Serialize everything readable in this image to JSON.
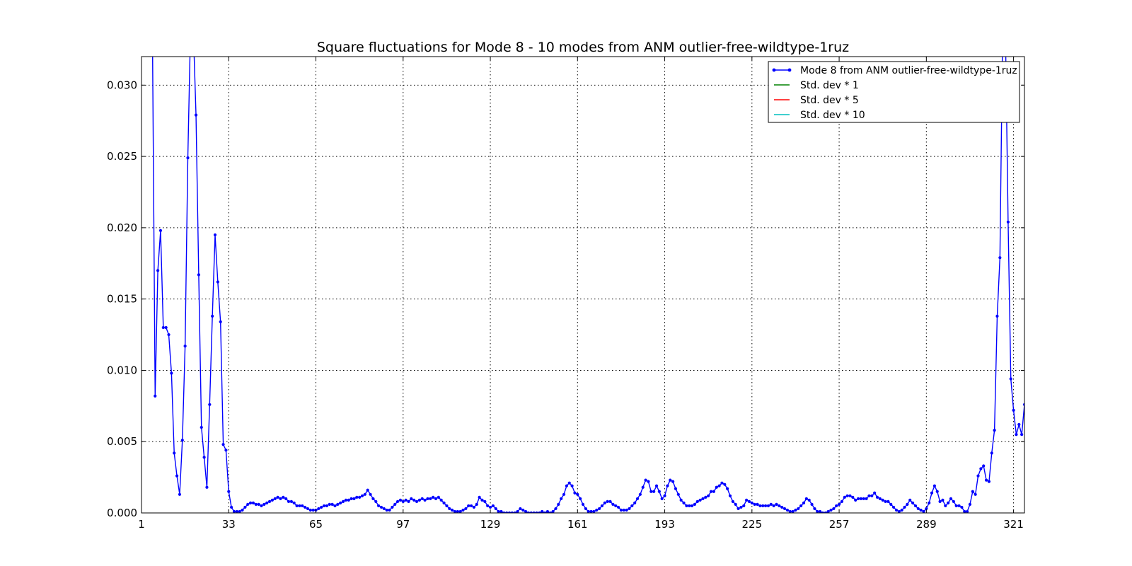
{
  "chart_data": {
    "type": "line",
    "title": "Square fluctuations for Mode 8 - 10 modes from ANM outlier-free-wildtype-1ruz",
    "xlabel": "",
    "ylabel": "",
    "xlim": [
      1,
      325
    ],
    "ylim": [
      0,
      0.032
    ],
    "x_ticks": [
      1,
      33,
      65,
      97,
      129,
      161,
      193,
      225,
      257,
      289,
      321
    ],
    "y_ticks": [
      0,
      0.005,
      0.01,
      0.015,
      0.02,
      0.025,
      0.03
    ],
    "y_tick_labels": [
      "0.000",
      "0.005",
      "0.010",
      "0.015",
      "0.020",
      "0.025",
      "0.030"
    ],
    "grid": true,
    "legend_position": "top-right",
    "colors": {
      "mode": "#0000ff",
      "std1": "#008000",
      "std5": "#ff0000",
      "std10": "#00bfbf"
    },
    "series": [
      {
        "name": "Mode 8 from ANM outlier-free-wildtype-1ruz",
        "x_start": 5,
        "values": [
          0.034,
          0.0082,
          0.017,
          0.0198,
          0.013,
          0.013,
          0.0125,
          0.0098,
          0.0042,
          0.0026,
          0.0013,
          0.0051,
          0.0117,
          0.0249,
          0.034,
          0.034,
          0.0279,
          0.0167,
          0.006,
          0.0039,
          0.0018,
          0.0076,
          0.0138,
          0.0195,
          0.0162,
          0.0134,
          0.0048,
          0.0044,
          0.0015,
          0.0004,
          0.0001,
          0.0001,
          0.0001,
          0.0002,
          0.0004,
          0.0006,
          0.0007,
          0.0007,
          0.0006,
          0.0006,
          0.0005,
          0.0006,
          0.0007,
          0.0008,
          0.0009,
          0.001,
          0.0011,
          0.001,
          0.0011,
          0.001,
          0.0008,
          0.0008,
          0.0007,
          0.0005,
          0.0005,
          0.0005,
          0.0004,
          0.0003,
          0.0002,
          0.0002,
          0.0002,
          0.0003,
          0.0004,
          0.0005,
          0.0005,
          0.0006,
          0.0006,
          0.0005,
          0.0006,
          0.0007,
          0.0008,
          0.0009,
          0.0009,
          0.001,
          0.001,
          0.0011,
          0.0011,
          0.0012,
          0.0013,
          0.0016,
          0.0013,
          0.001,
          0.0008,
          0.0005,
          0.0004,
          0.0003,
          0.0002,
          0.0002,
          0.0004,
          0.0006,
          0.0008,
          0.0009,
          0.0008,
          0.0009,
          0.0008,
          0.001,
          0.0009,
          0.0008,
          0.0009,
          0.001,
          0.0009,
          0.001,
          0.001,
          0.0011,
          0.001,
          0.0011,
          0.0009,
          0.0007,
          0.0005,
          0.0003,
          0.0002,
          0.0001,
          0.0001,
          0.0001,
          0.0002,
          0.0003,
          0.0005,
          0.0005,
          0.0004,
          0.0006,
          0.0011,
          0.0009,
          0.0008,
          0.0005,
          0.0004,
          0.0005,
          0.0003,
          0.0001,
          0.0001,
          0.0,
          0.0,
          0.0,
          0.0,
          0.0,
          0.0001,
          0.0003,
          0.0002,
          0.0001,
          0.0,
          0.0,
          0.0,
          0.0,
          0.0,
          0.0001,
          0.0,
          0.0001,
          0.0,
          0.0001,
          0.0003,
          0.0006,
          0.001,
          0.0013,
          0.0019,
          0.0021,
          0.0019,
          0.0014,
          0.0013,
          0.001,
          0.0006,
          0.0003,
          0.0001,
          0.0001,
          0.0001,
          0.0002,
          0.0003,
          0.0005,
          0.0007,
          0.0008,
          0.0008,
          0.0006,
          0.0005,
          0.0004,
          0.0002,
          0.0002,
          0.0002,
          0.0003,
          0.0005,
          0.0007,
          0.001,
          0.0013,
          0.0018,
          0.0023,
          0.0022,
          0.0015,
          0.0015,
          0.0019,
          0.0015,
          0.001,
          0.0012,
          0.0019,
          0.0023,
          0.0022,
          0.0017,
          0.0013,
          0.0009,
          0.0007,
          0.0005,
          0.0005,
          0.0005,
          0.0006,
          0.0008,
          0.0009,
          0.001,
          0.0011,
          0.0012,
          0.0015,
          0.0015,
          0.0018,
          0.0019,
          0.0021,
          0.002,
          0.0017,
          0.0012,
          0.0008,
          0.0006,
          0.0003,
          0.0004,
          0.0005,
          0.0009,
          0.0008,
          0.0007,
          0.0006,
          0.0006,
          0.0005,
          0.0005,
          0.0005,
          0.0005,
          0.0006,
          0.0005,
          0.0006,
          0.0005,
          0.0004,
          0.0003,
          0.0002,
          0.0001,
          0.0001,
          0.0002,
          0.0003,
          0.0005,
          0.0007,
          0.001,
          0.0009,
          0.0006,
          0.0003,
          0.0001,
          0.0001,
          0.0,
          0.0,
          0.0001,
          0.0002,
          0.0003,
          0.0005,
          0.0006,
          0.0008,
          0.0011,
          0.0012,
          0.0012,
          0.0011,
          0.0009,
          0.001,
          0.001,
          0.001,
          0.001,
          0.0012,
          0.0012,
          0.0014,
          0.0011,
          0.001,
          0.0009,
          0.0008,
          0.0008,
          0.0006,
          0.0004,
          0.0002,
          0.0001,
          0.0002,
          0.0004,
          0.0006,
          0.0009,
          0.0007,
          0.0005,
          0.0003,
          0.0002,
          0.0001,
          0.0003,
          0.0007,
          0.0014,
          0.0019,
          0.0015,
          0.0008,
          0.0009,
          0.0005,
          0.0007,
          0.001,
          0.0008,
          0.0005,
          0.0005,
          0.0004,
          0.0001,
          0.0001,
          0.0006,
          0.0015,
          0.0013,
          0.0026,
          0.0031,
          0.0033,
          0.0023,
          0.0022,
          0.0042,
          0.0058,
          0.0138,
          0.0179,
          0.034,
          0.034,
          0.0204,
          0.0094,
          0.0072,
          0.0055,
          0.0062,
          0.0055,
          0.0076
        ]
      },
      {
        "name": "Std. dev * 1",
        "values": []
      },
      {
        "name": "Std. dev * 5",
        "values": []
      },
      {
        "name": "Std. dev * 10",
        "values": []
      }
    ]
  }
}
